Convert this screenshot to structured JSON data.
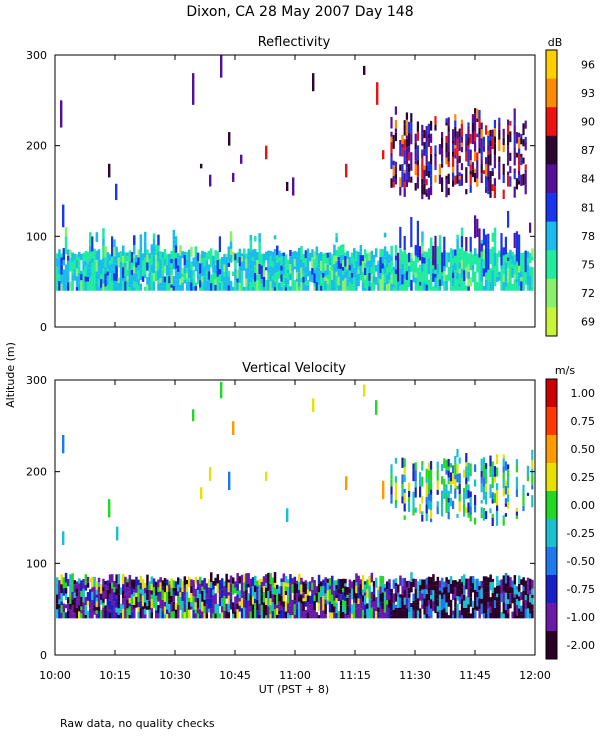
{
  "title": "Dixon, CA 28 May 2007  Day 148",
  "ylabel": "Altitude (m)",
  "xlabel": "UT  (PST + 8)",
  "footnote": "Raw data, no quality checks",
  "chart_data": [
    {
      "type": "heatmap",
      "title": "Reflectivity",
      "xlabel": "UT  (PST + 8)",
      "ylabel": "Altitude (m)",
      "x_range": [
        "10:00",
        "12:00"
      ],
      "x_ticks": [
        "10:00",
        "10:15",
        "10:30",
        "10:45",
        "11:00",
        "11:15",
        "11:30",
        "11:45",
        "12:00"
      ],
      "ylim": [
        0,
        300
      ],
      "y_ticks": [
        0,
        100,
        200,
        300
      ],
      "colorbar": {
        "unit": "dB",
        "labels": [
          "96",
          "93",
          "90",
          "87",
          "84",
          "81",
          "78",
          "75",
          "72",
          "69"
        ],
        "colors": [
          "#ffd000",
          "#ff8c00",
          "#ee1111",
          "#2b0630",
          "#55109a",
          "#1a35ee",
          "#1abcee",
          "#20eb9f",
          "#8aef6a",
          "#c8f53a"
        ]
      }
    },
    {
      "type": "heatmap",
      "title": "Vertical Velocity",
      "xlabel": "UT  (PST + 8)",
      "ylabel": "Altitude (m)",
      "x_range": [
        "10:00",
        "12:00"
      ],
      "x_ticks": [
        "10:00",
        "10:15",
        "10:30",
        "10:45",
        "11:00",
        "11:15",
        "11:30",
        "11:45",
        "12:00"
      ],
      "ylim": [
        0,
        300
      ],
      "y_ticks": [
        0,
        100,
        200,
        300
      ],
      "colorbar": {
        "unit": "m/s",
        "labels": [
          "1.00",
          "0.75",
          "0.50",
          "0.25",
          "0.00",
          "-0.25",
          "-0.50",
          "-0.75",
          "-1.00",
          "-2.00"
        ],
        "colors": [
          "#cc0000",
          "#ff3a00",
          "#ff9a00",
          "#e8e000",
          "#22d822",
          "#19c0d0",
          "#1f78ee",
          "#1a20c8",
          "#6a1aa8",
          "#2a0028"
        ]
      }
    }
  ]
}
